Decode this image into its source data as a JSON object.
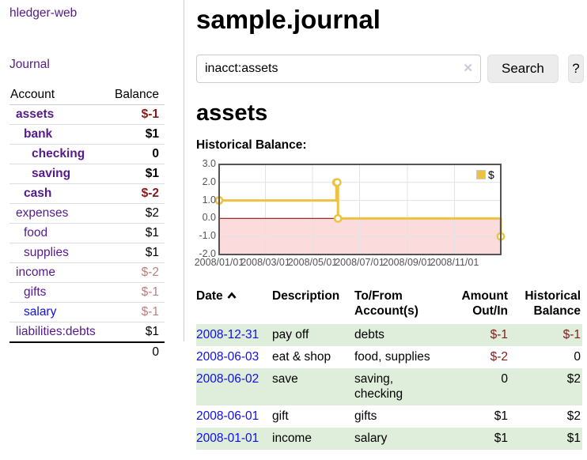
{
  "sidebar": {
    "app_title": "hledger-web",
    "nav": {
      "journal": "Journal"
    },
    "accounts_table": {
      "headers": {
        "account": "Account",
        "balance": "Balance"
      },
      "rows": [
        {
          "name": "assets",
          "balance": "$-1"
        },
        {
          "name": "bank",
          "balance": "$1"
        },
        {
          "name": "checking",
          "balance": "0"
        },
        {
          "name": "saving",
          "balance": "$1"
        },
        {
          "name": "cash",
          "balance": "$-2"
        },
        {
          "name": "expenses",
          "balance": "$2"
        },
        {
          "name": "food",
          "balance": "$1"
        },
        {
          "name": "supplies",
          "balance": "$1"
        },
        {
          "name": "income",
          "balance": "$-2"
        },
        {
          "name": "gifts",
          "balance": "$-1"
        },
        {
          "name": "salary",
          "balance": "$-1"
        },
        {
          "name": "liabilities:debts",
          "balance": "$1"
        }
      ],
      "total": "0"
    }
  },
  "header": {
    "title": "sample.journal",
    "search": {
      "value": "inacct:assets",
      "clear_icon": "✕",
      "search_button": "Search",
      "help_button": "?"
    }
  },
  "content": {
    "account_heading": "assets",
    "chart_title": "Historical Balance:"
  },
  "chart_data": {
    "type": "line",
    "step": true,
    "title": "Historical Balance:",
    "x": [
      "2008-01-01",
      "2008-06-01",
      "2008-06-02",
      "2008-06-03",
      "2008-12-31"
    ],
    "series": [
      {
        "name": "$",
        "color": "#edc240",
        "values": [
          1,
          2,
          2,
          0,
          -1
        ]
      }
    ],
    "xlim": [
      "2008-01-01",
      "2008-12-31"
    ],
    "ylim": [
      -2,
      3
    ],
    "x_ticks": [
      "2008/01/01",
      "2008/03/01",
      "2008/05/01",
      "2008/07/01",
      "2008/09/01",
      "2008/11/01"
    ],
    "y_ticks": [
      "3.0",
      "2.0",
      "1.0",
      "0.0",
      "-1.0",
      "-2.0"
    ],
    "grid": true,
    "legend_position": "top-right",
    "negative_region_color": "#fbdbdb",
    "zero_line_color": "#a52a2a",
    "border_color": "#545454",
    "grid_color": "#e3e3e3"
  },
  "register": {
    "headers": {
      "date": "Date",
      "description": "Description",
      "accounts": "To/From Account(s)",
      "amount": "Amount Out/In",
      "balance": "Historical Balance"
    },
    "rows": [
      {
        "date": "2008-12-31",
        "description": "pay off",
        "accounts": "debts",
        "amount": "$-1",
        "balance": "$-1"
      },
      {
        "date": "2008-06-03",
        "description": "eat & shop",
        "accounts": "food, supplies",
        "amount": "$-2",
        "balance": "0"
      },
      {
        "date": "2008-06-02",
        "description": "save",
        "accounts": "saving, checking",
        "amount": "0",
        "balance": "$2"
      },
      {
        "date": "2008-06-01",
        "description": "gift",
        "accounts": "gifts",
        "amount": "$1",
        "balance": "$2"
      },
      {
        "date": "2008-01-01",
        "description": "income",
        "accounts": "salary",
        "amount": "$1",
        "balance": "$1"
      }
    ]
  },
  "colors": {
    "link_purple": "#551a8b",
    "link_blue": "#0f0fe8",
    "negative_strong": "#851a1a",
    "negative_light": "#bd7e7e",
    "row_green": "#dfeeda",
    "button_gray": "#ececec",
    "chart_series": "#edc240"
  }
}
